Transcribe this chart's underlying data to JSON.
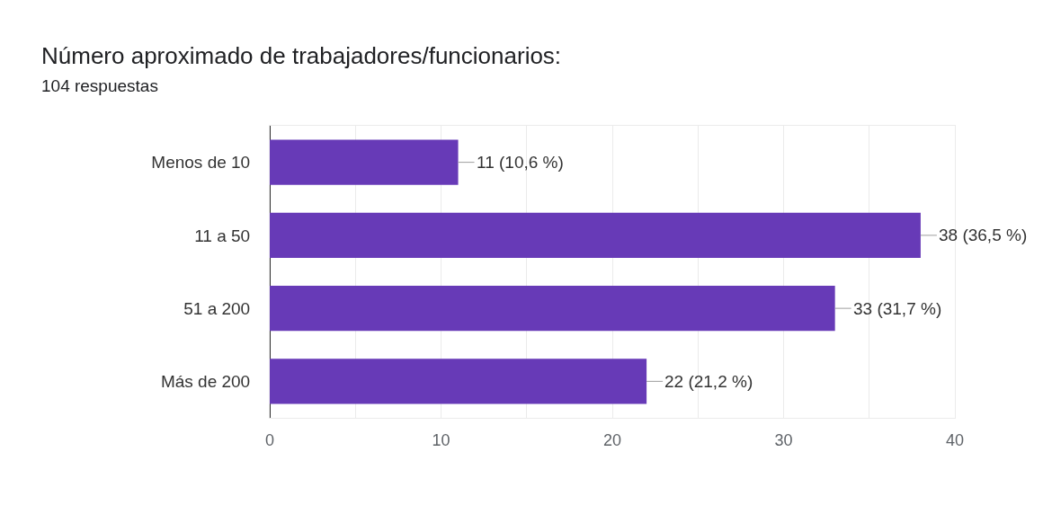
{
  "chart_data": {
    "type": "bar",
    "orientation": "horizontal",
    "title": "Número aproximado de trabajadores/funcionarios:",
    "subtitle": "104 respuestas",
    "categories": [
      "Menos de 10",
      "11 a 50",
      "51 a 200",
      "Más de 200"
    ],
    "values": [
      11,
      38,
      33,
      22
    ],
    "value_labels": [
      "11 (10,6 %)",
      "38 (36,5 %)",
      "33 (31,7 %)",
      "22 (21,2 %)"
    ],
    "color": "#673ab7",
    "xlim": [
      0,
      40
    ],
    "xticks": [
      0,
      {
        "value": 5,
        "label": null
      },
      10,
      {
        "value": 15,
        "label": null
      },
      20,
      {
        "value": 25,
        "label": null
      },
      30,
      {
        "value": 35,
        "label": null
      },
      40
    ],
    "grid": "x"
  }
}
